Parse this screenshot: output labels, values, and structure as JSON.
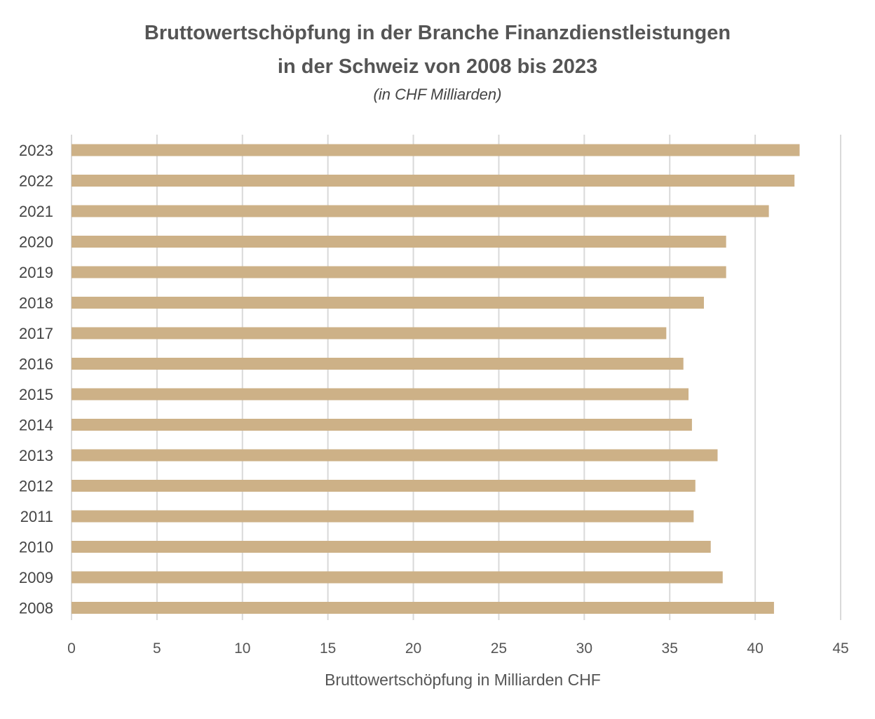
{
  "chart_data": {
    "type": "bar",
    "orientation": "horizontal",
    "title_line1": "Bruttowertschöpfung in der Branche Finanzdienstleistungen",
    "title_line2": "in der Schweiz von 2008 bis 2023",
    "subtitle": "(in CHF Milliarden)",
    "xlabel": "Bruttowertschöpfung in Milliarden CHF",
    "ylabel": "",
    "xlim": [
      0,
      45
    ],
    "xticks": [
      0,
      5,
      10,
      15,
      20,
      25,
      30,
      35,
      40,
      45
    ],
    "grid": "vertical",
    "bar_color": "#CDB187",
    "categories": [
      "2023",
      "2022",
      "2021",
      "2020",
      "2019",
      "2018",
      "2017",
      "2016",
      "2015",
      "2014",
      "2013",
      "2012",
      "2011",
      "2010",
      "2009",
      "2008"
    ],
    "values": [
      42.6,
      42.3,
      40.8,
      38.3,
      38.3,
      37.0,
      34.8,
      35.8,
      36.1,
      36.3,
      37.8,
      36.5,
      36.4,
      37.4,
      38.1,
      41.1
    ]
  }
}
